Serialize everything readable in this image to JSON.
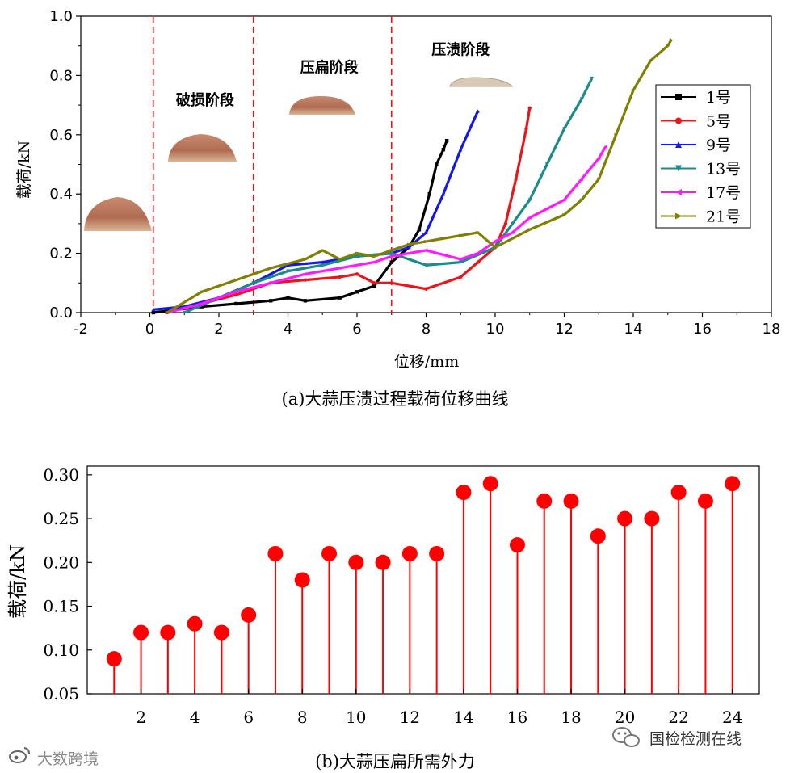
{
  "chart_data": [
    {
      "type": "line",
      "caption": "(a)大蒜压溃过程载荷位移曲线",
      "xlabel": "位移/mm",
      "ylabel": "载荷/kN",
      "xlim": [
        -2,
        18
      ],
      "ylim": [
        0,
        1.0
      ],
      "xticks": [
        "-2",
        "0",
        "2",
        "4",
        "6",
        "8",
        "10",
        "12",
        "14",
        "16",
        "18"
      ],
      "yticks": [
        "0.0",
        "0.2",
        "0.4",
        "0.6",
        "0.8",
        "1.0"
      ],
      "stage_boundaries": [
        0.1,
        3.0,
        7.0
      ],
      "stages": [
        {
          "label": "破损阶段",
          "x": 1.6,
          "y": 0.7
        },
        {
          "label": "压扁阶段",
          "x": 5.2,
          "y": 0.81
        },
        {
          "label": "压溃阶段",
          "x": 9.0,
          "y": 0.87
        }
      ],
      "legend_position": "top-right",
      "series": [
        {
          "name": "1号",
          "color": "#000000",
          "marker": "square",
          "x": [
            0.1,
            1.5,
            2.5,
            3.5,
            4.0,
            4.5,
            5.5,
            6.0,
            6.5,
            7.0,
            7.5,
            7.8,
            8.1,
            8.3,
            8.5,
            8.6
          ],
          "y": [
            0.0,
            0.02,
            0.03,
            0.04,
            0.05,
            0.04,
            0.05,
            0.07,
            0.09,
            0.17,
            0.22,
            0.28,
            0.4,
            0.5,
            0.55,
            0.58
          ]
        },
        {
          "name": "5号",
          "color": "#e8151b",
          "marker": "circle",
          "x": [
            0.5,
            1.5,
            2.5,
            3.5,
            4.5,
            5.5,
            6.0,
            6.5,
            7.0,
            8.0,
            9.0,
            9.5,
            10.0,
            10.3,
            10.6,
            10.9,
            11.0
          ],
          "y": [
            0.0,
            0.03,
            0.06,
            0.1,
            0.11,
            0.12,
            0.13,
            0.1,
            0.1,
            0.08,
            0.12,
            0.17,
            0.22,
            0.3,
            0.45,
            0.62,
            0.69
          ]
        },
        {
          "name": "9号",
          "color": "#1418e6",
          "marker": "triangle-up",
          "x": [
            0.1,
            1.0,
            2.0,
            3.0,
            3.5,
            4.0,
            5.0,
            6.0,
            7.0,
            7.5,
            8.0,
            8.5,
            9.0,
            9.5
          ],
          "y": [
            0.01,
            0.02,
            0.05,
            0.1,
            0.13,
            0.16,
            0.17,
            0.19,
            0.2,
            0.22,
            0.27,
            0.4,
            0.55,
            0.68
          ]
        },
        {
          "name": "13号",
          "color": "#1b8a8a",
          "marker": "triangle-down",
          "x": [
            1.0,
            2.0,
            3.0,
            4.0,
            5.0,
            6.0,
            7.0,
            8.0,
            9.0,
            10.0,
            10.5,
            11.0,
            11.5,
            12.0,
            12.5,
            12.8
          ],
          "y": [
            0.0,
            0.05,
            0.1,
            0.14,
            0.16,
            0.19,
            0.2,
            0.16,
            0.17,
            0.22,
            0.3,
            0.38,
            0.5,
            0.62,
            0.72,
            0.79
          ]
        },
        {
          "name": "17号",
          "color": "#ff1aff",
          "marker": "triangle-left",
          "x": [
            0.5,
            1.5,
            2.5,
            3.5,
            4.5,
            5.5,
            6.5,
            7.0,
            8.0,
            9.0,
            9.5,
            10.0,
            10.5,
            11.0,
            11.5,
            12.0,
            12.5,
            13.0,
            13.2
          ],
          "y": [
            0.0,
            0.03,
            0.07,
            0.1,
            0.13,
            0.15,
            0.17,
            0.19,
            0.21,
            0.18,
            0.2,
            0.24,
            0.27,
            0.32,
            0.35,
            0.38,
            0.45,
            0.52,
            0.56
          ]
        },
        {
          "name": "21号",
          "color": "#808000",
          "marker": "triangle-right",
          "x": [
            0.5,
            1.5,
            2.5,
            3.5,
            4.5,
            5.0,
            5.5,
            6.0,
            6.5,
            7.0,
            7.5,
            8.0,
            8.5,
            9.0,
            9.5,
            10.0,
            11.0,
            12.0,
            12.5,
            13.0,
            13.5,
            14.0,
            14.5,
            15.0,
            15.1
          ],
          "y": [
            0.0,
            0.07,
            0.11,
            0.15,
            0.18,
            0.21,
            0.18,
            0.2,
            0.19,
            0.21,
            0.23,
            0.24,
            0.25,
            0.26,
            0.27,
            0.22,
            0.28,
            0.33,
            0.38,
            0.45,
            0.6,
            0.75,
            0.85,
            0.9,
            0.92
          ]
        }
      ]
    },
    {
      "type": "stem",
      "caption": "(b)大蒜压扁所需外力",
      "xlabel": "",
      "ylabel": "载荷/kN",
      "xlim": [
        0,
        25
      ],
      "ylim": [
        0.05,
        0.31
      ],
      "xticks": [
        "2",
        "4",
        "6",
        "8",
        "10",
        "12",
        "14",
        "16",
        "18",
        "20",
        "22",
        "24"
      ],
      "yticks": [
        "0.05",
        "0.10",
        "0.15",
        "0.20",
        "0.25",
        "0.30"
      ],
      "color": "#ff0000",
      "x": [
        1,
        2,
        3,
        4,
        5,
        6,
        7,
        8,
        9,
        10,
        11,
        12,
        13,
        14,
        15,
        16,
        17,
        18,
        19,
        20,
        21,
        22,
        23,
        24
      ],
      "values": [
        0.09,
        0.12,
        0.12,
        0.13,
        0.12,
        0.14,
        0.21,
        0.18,
        0.21,
        0.2,
        0.2,
        0.21,
        0.21,
        0.28,
        0.29,
        0.22,
        0.27,
        0.27,
        0.23,
        0.25,
        0.25,
        0.28,
        0.27,
        0.29
      ]
    }
  ],
  "watermarks": {
    "left": "大数跨境",
    "right": "国检检测在线"
  },
  "icons": {
    "left": "weibo-icon",
    "right": "wechat-icon"
  }
}
